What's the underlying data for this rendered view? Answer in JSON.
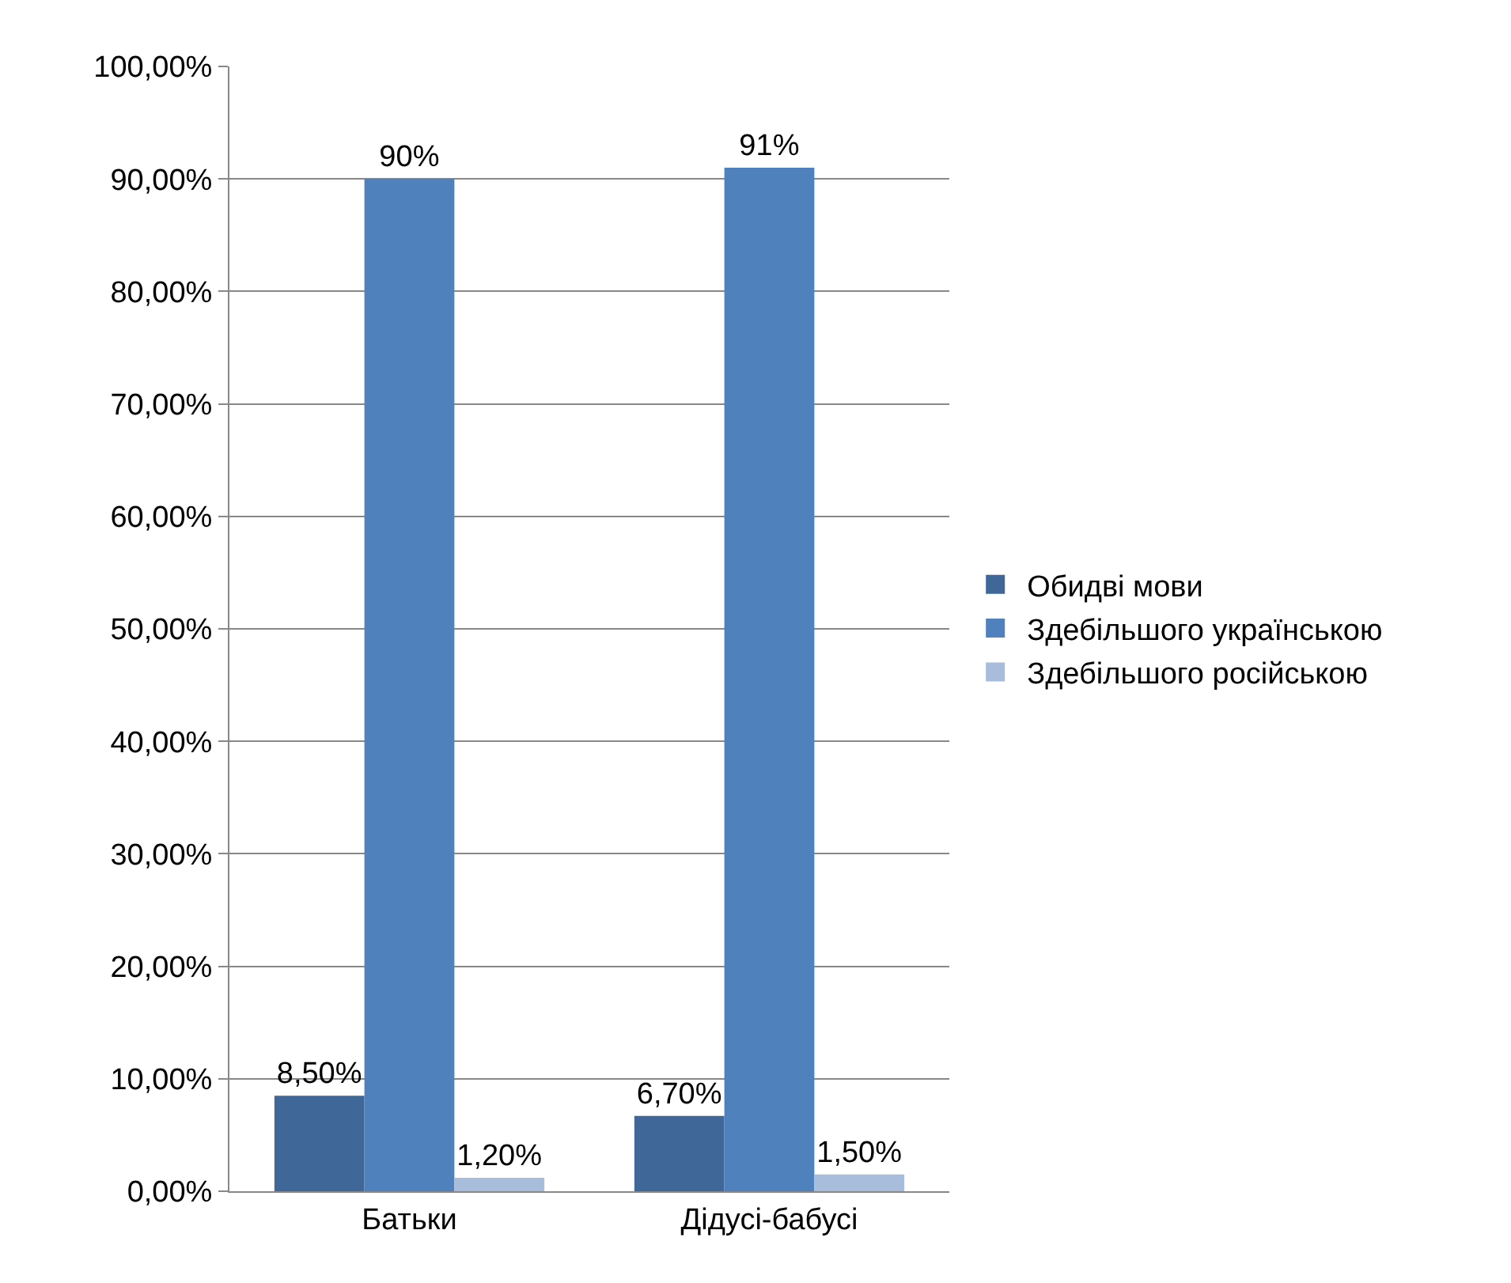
{
  "chart_data": {
    "type": "bar",
    "categories": [
      "Батьки",
      "Дідусі-бабусі"
    ],
    "series": [
      {
        "name": "Обидві мови",
        "color": "#3f6798",
        "values": [
          8.5,
          6.7
        ],
        "value_labels": [
          "8,50%",
          "6,70%"
        ]
      },
      {
        "name": "Здебільшого українською",
        "color": "#4f81bd",
        "values": [
          90,
          91
        ],
        "value_labels": [
          "90%",
          "91%"
        ]
      },
      {
        "name": "Здебільшого російською",
        "color": "#a8bcdc",
        "values": [
          1.2,
          1.5
        ],
        "value_labels": [
          "1,20%",
          "1,50%"
        ]
      }
    ],
    "ylim": [
      0,
      100
    ],
    "yticks": [
      {
        "value": 0,
        "label": "0,00%"
      },
      {
        "value": 10,
        "label": "10,00%"
      },
      {
        "value": 20,
        "label": "20,00%"
      },
      {
        "value": 30,
        "label": "30,00%"
      },
      {
        "value": 40,
        "label": "40,00%"
      },
      {
        "value": 50,
        "label": "50,00%"
      },
      {
        "value": 60,
        "label": "60,00%"
      },
      {
        "value": 70,
        "label": "70,00%"
      },
      {
        "value": 80,
        "label": "80,00%"
      },
      {
        "value": 90,
        "label": "90,00%"
      },
      {
        "value": 100,
        "label": "100,00%"
      }
    ],
    "grid": "y",
    "legend": "right"
  }
}
